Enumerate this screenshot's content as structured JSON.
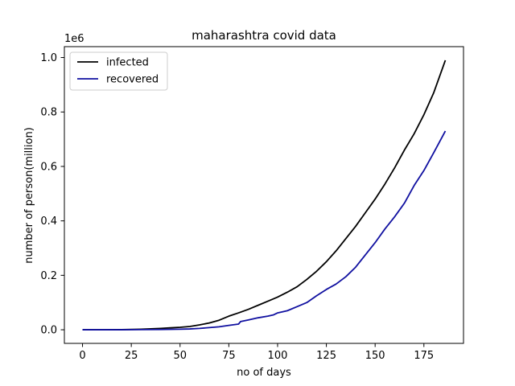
{
  "chart_data": {
    "type": "line",
    "title": "maharashtra covid data",
    "xlabel": "no of days",
    "ylabel": "number of person(million)",
    "y_offset_label": "1e6",
    "xlim": [
      -9.3,
      195.3
    ],
    "ylim": [
      -0.05,
      1.04
    ],
    "x_ticks": [
      0,
      25,
      50,
      75,
      100,
      125,
      150,
      175
    ],
    "x_tick_labels": [
      "0",
      "25",
      "50",
      "75",
      "100",
      "125",
      "150",
      "175"
    ],
    "y_ticks": [
      0.0,
      0.2,
      0.4,
      0.6,
      0.8,
      1.0
    ],
    "y_tick_labels": [
      "0.0",
      "0.2",
      "0.4",
      "0.6",
      "0.8",
      "1.0"
    ],
    "grid": false,
    "legend_position": "top-left",
    "series": [
      {
        "name": "infected",
        "color": "#000000",
        "x": [
          0,
          10,
          20,
          30,
          35,
          40,
          45,
          50,
          55,
          60,
          65,
          70,
          75,
          80,
          85,
          90,
          95,
          100,
          105,
          110,
          115,
          120,
          125,
          130,
          135,
          140,
          145,
          150,
          155,
          160,
          165,
          170,
          175,
          180,
          186
        ],
        "y": [
          0.0,
          0.0,
          0.0005,
          0.002,
          0.0035,
          0.005,
          0.007,
          0.009,
          0.012,
          0.018,
          0.025,
          0.035,
          0.05,
          0.062,
          0.075,
          0.09,
          0.105,
          0.12,
          0.138,
          0.158,
          0.185,
          0.215,
          0.25,
          0.29,
          0.335,
          0.38,
          0.43,
          0.48,
          0.535,
          0.595,
          0.66,
          0.72,
          0.79,
          0.87,
          0.99
        ]
      },
      {
        "name": "recovered",
        "color": "#1010a0",
        "x": [
          0,
          10,
          20,
          30,
          40,
          50,
          55,
          60,
          65,
          70,
          75,
          80,
          81,
          85,
          90,
          95,
          98,
          100,
          105,
          110,
          115,
          120,
          125,
          130,
          135,
          140,
          145,
          150,
          155,
          160,
          165,
          170,
          175,
          180,
          186
        ],
        "y": [
          0.0,
          0.0,
          0.0,
          0.0005,
          0.001,
          0.002,
          0.003,
          0.005,
          0.008,
          0.011,
          0.016,
          0.021,
          0.03,
          0.036,
          0.044,
          0.05,
          0.055,
          0.062,
          0.07,
          0.085,
          0.1,
          0.125,
          0.148,
          0.168,
          0.195,
          0.23,
          0.275,
          0.32,
          0.37,
          0.415,
          0.465,
          0.53,
          0.585,
          0.65,
          0.73
        ]
      }
    ]
  }
}
